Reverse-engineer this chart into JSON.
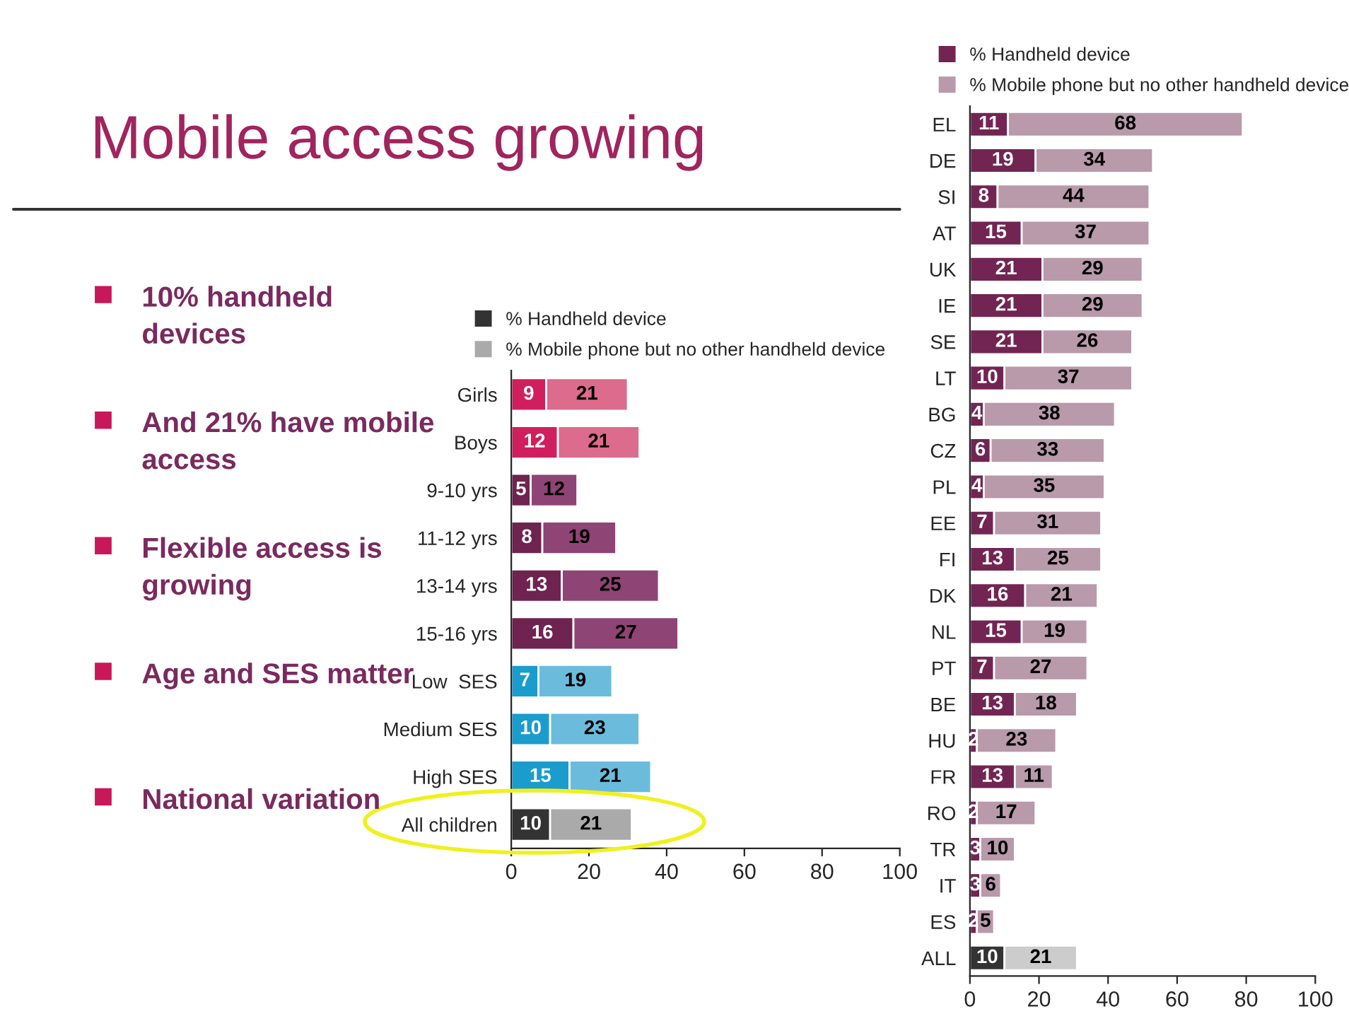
{
  "chart_data": [
    {
      "type": "bar",
      "orientation": "horizontal",
      "stacked": true,
      "data_labels": true,
      "title": "Mobile access growing",
      "annotations": [
        "10% handheld devices",
        "And 21% have mobile access",
        "Flexible access is growing",
        "Age and SES matter",
        "National variation"
      ],
      "categories": [
        "Girls",
        "Boys",
        "9-10 yrs",
        "11-12 yrs",
        "13-14 yrs",
        "15-16 yrs",
        "Low  SES",
        "Medium SES",
        "High SES",
        "All children"
      ],
      "series": [
        {
          "name": "% Handheld device",
          "color": "#333333",
          "values": [
            9,
            12,
            5,
            8,
            13,
            16,
            7,
            10,
            15,
            10
          ],
          "colors": [
            "#d01f5c",
            "#d01f5c",
            "#6e2350",
            "#6e2350",
            "#6e2350",
            "#6e2350",
            "#1a9ccc",
            "#1a9ccc",
            "#1a9ccc",
            "#333333"
          ]
        },
        {
          "name": "% Mobile phone but no other handheld device",
          "color": "#aaaaaa",
          "values": [
            21,
            21,
            12,
            19,
            25,
            27,
            19,
            23,
            21,
            21
          ],
          "colors": [
            "#dc6b8e",
            "#dc6b8e",
            "#8e4474",
            "#8e4474",
            "#8e4474",
            "#8e4474",
            "#6bbcdc",
            "#6bbcdc",
            "#6bbcdc",
            "#aaaaaa"
          ]
        }
      ],
      "xlim": [
        0,
        100
      ],
      "xticks": [
        0,
        20,
        40,
        60,
        80,
        100
      ],
      "legend": "top",
      "grid": false
    },
    {
      "type": "bar",
      "orientation": "horizontal",
      "stacked": true,
      "data_labels": true,
      "categories": [
        "EL",
        "DE",
        "SI",
        "AT",
        "UK",
        "IE",
        "SE",
        "LT",
        "BG",
        "CZ",
        "PL",
        "EE",
        "FI",
        "DK",
        "NL",
        "PT",
        "BE",
        "HU",
        "FR",
        "RO",
        "TR",
        "IT",
        "ES",
        "ALL"
      ],
      "series": [
        {
          "name": "% Handheld device",
          "color": "#722552",
          "values": [
            11,
            19,
            8,
            15,
            21,
            21,
            21,
            10,
            4,
            6,
            4,
            7,
            13,
            16,
            15,
            7,
            13,
            2,
            13,
            2,
            3,
            3,
            2,
            10
          ],
          "colors": [
            "#722552",
            "#722552",
            "#722552",
            "#722552",
            "#722552",
            "#722552",
            "#722552",
            "#722552",
            "#722552",
            "#722552",
            "#722552",
            "#722552",
            "#722552",
            "#722552",
            "#722552",
            "#722552",
            "#722552",
            "#722552",
            "#722552",
            "#722552",
            "#722552",
            "#722552",
            "#722552",
            "#333333"
          ]
        },
        {
          "name": "% Mobile phone but no other handheld device",
          "color": "#b89aab",
          "values": [
            68,
            34,
            44,
            37,
            29,
            29,
            26,
            37,
            38,
            33,
            35,
            31,
            25,
            21,
            19,
            27,
            18,
            23,
            11,
            17,
            10,
            6,
            5,
            21
          ],
          "colors": [
            "#b89aab",
            "#b89aab",
            "#b89aab",
            "#b89aab",
            "#b89aab",
            "#b89aab",
            "#b89aab",
            "#b89aab",
            "#b89aab",
            "#b89aab",
            "#b89aab",
            "#b89aab",
            "#b89aab",
            "#b89aab",
            "#b89aab",
            "#b89aab",
            "#b89aab",
            "#b89aab",
            "#b89aab",
            "#b89aab",
            "#b89aab",
            "#b89aab",
            "#b89aab",
            "#cccccc"
          ]
        }
      ],
      "xlim": [
        0,
        100
      ],
      "xticks": [
        0,
        20,
        40,
        60,
        80,
        100
      ],
      "legend": "top",
      "grid": false
    }
  ]
}
